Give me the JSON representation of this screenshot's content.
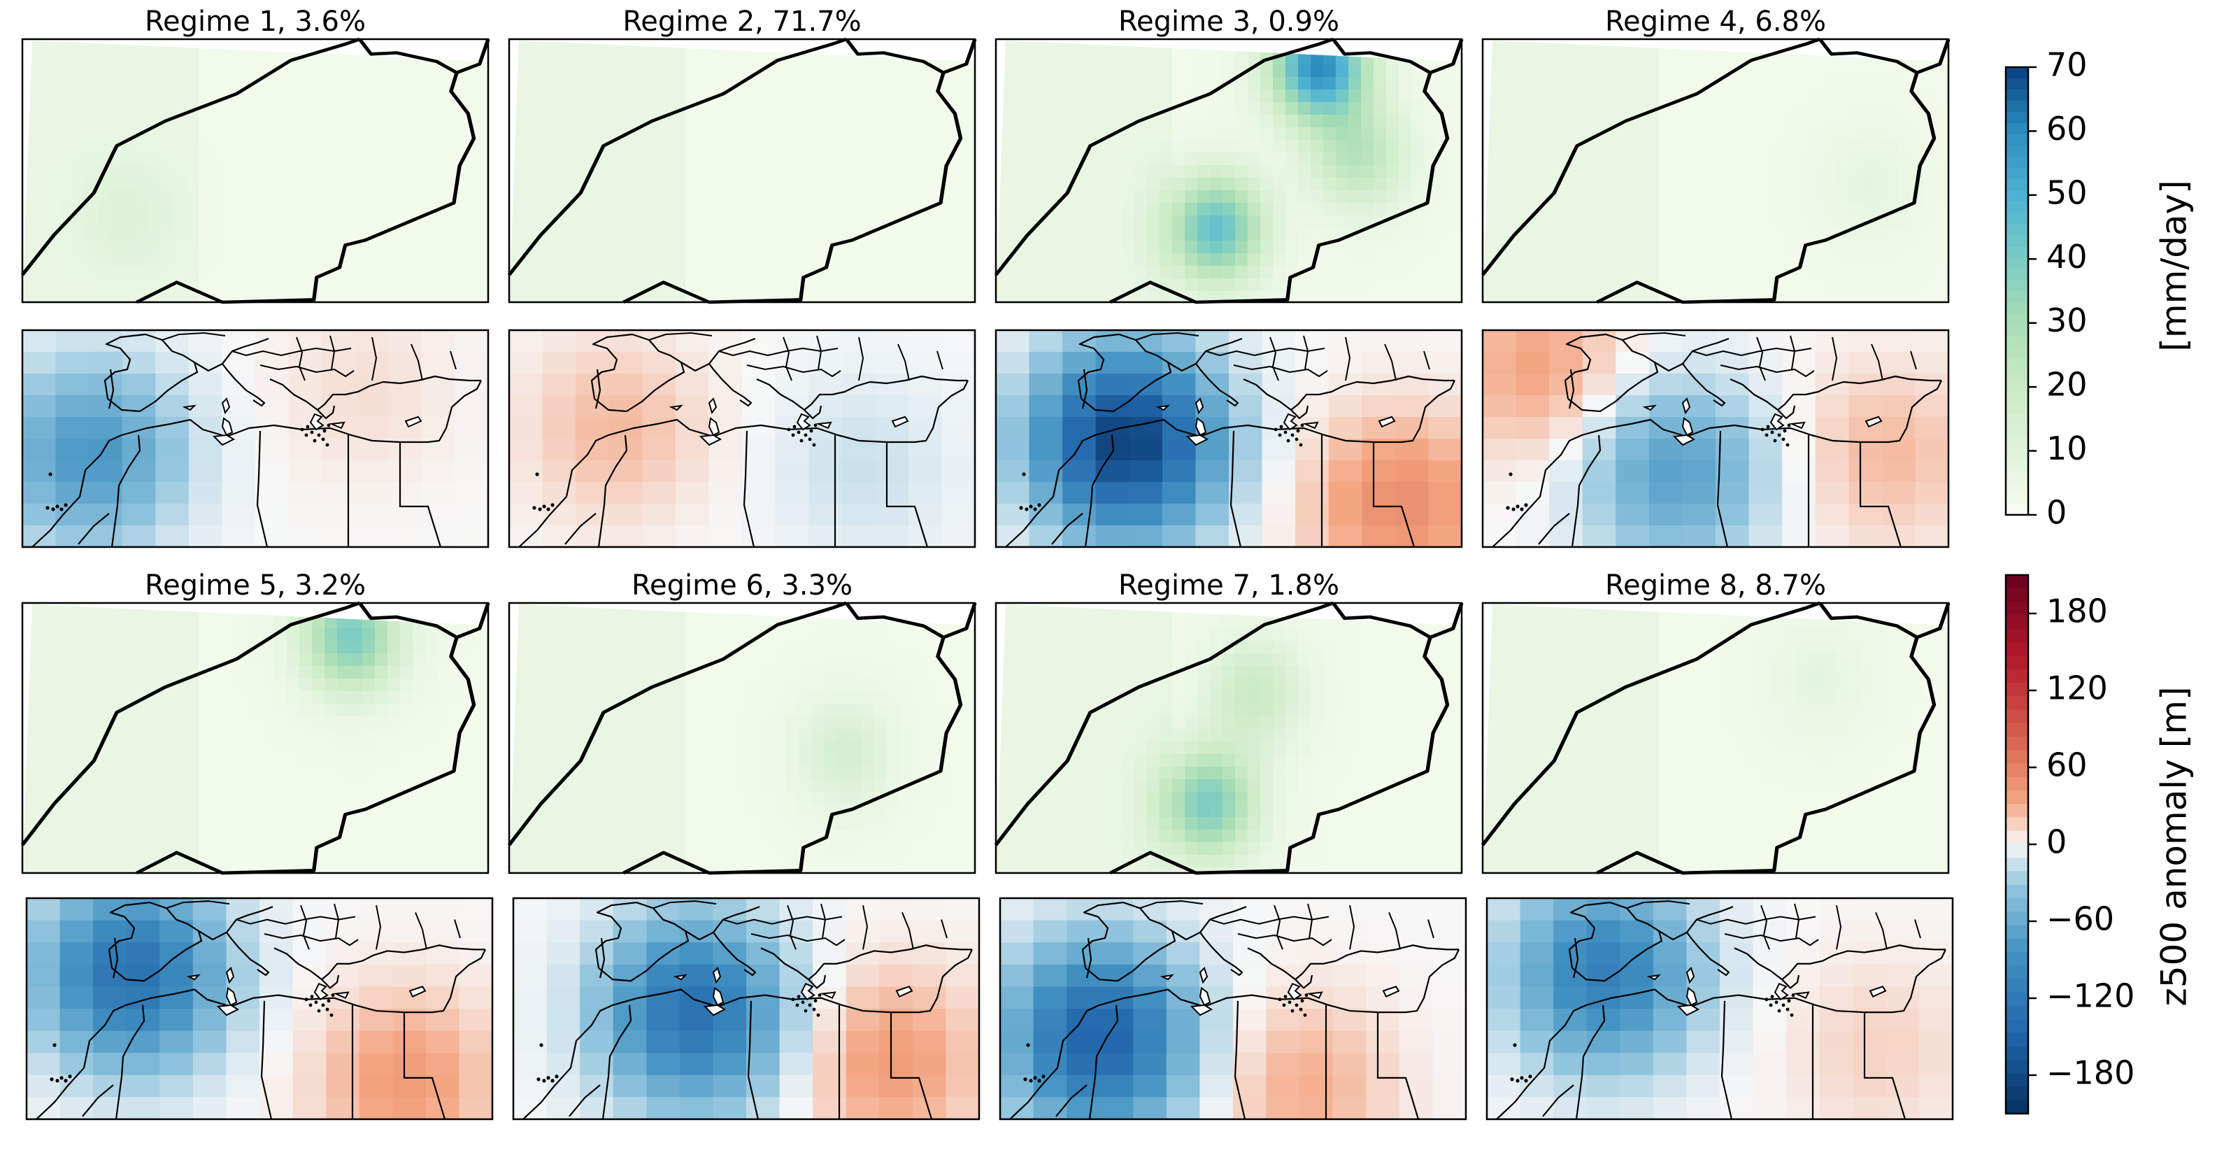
{
  "chart_data": {
    "type": "heatmap",
    "figure_kind": "weather regime composite maps",
    "panels": [
      {
        "id": 1,
        "title": "Regime 1,  3.6%",
        "regime": 1,
        "frequency_pct": 3.6,
        "precip_features": [
          {
            "lon": -14,
            "lat": 30,
            "value": 8
          }
        ],
        "z500_anomaly_features": [
          {
            "lon": -24,
            "lat": 40,
            "value": -80
          },
          {
            "lon": 20,
            "lat": 50,
            "value": 10
          }
        ]
      },
      {
        "id": 2,
        "title": "Regime 2, 71.7%",
        "regime": 2,
        "frequency_pct": 71.7,
        "precip_features": [],
        "z500_anomaly_features": [
          {
            "lon": -18,
            "lat": 44,
            "value": 25
          },
          {
            "lon": 22,
            "lat": 38,
            "value": -15
          }
        ]
      },
      {
        "id": 3,
        "title": "Regime 3,  0.9%",
        "regime": 3,
        "frequency_pct": 0.9,
        "precip_features": [
          {
            "lon": -5.5,
            "lat": 35.1,
            "value": 60
          },
          {
            "lon": -9.5,
            "lat": 29.5,
            "value": 45
          },
          {
            "lon": -4,
            "lat": 32,
            "value": 25
          }
        ],
        "z500_anomaly_features": [
          {
            "lon": -14,
            "lat": 42,
            "value": -190
          },
          {
            "lon": 30,
            "lat": 32,
            "value": 50
          }
        ]
      },
      {
        "id": 4,
        "title": "Regime 4,  6.8%",
        "regime": 4,
        "frequency_pct": 6.8,
        "precip_features": [
          {
            "lon": -3,
            "lat": 31,
            "value": 8
          }
        ],
        "z500_anomaly_features": [
          {
            "lon": -4,
            "lat": 37,
            "value": -70
          },
          {
            "lon": -26,
            "lat": 54,
            "value": 35
          },
          {
            "lon": 30,
            "lat": 40,
            "value": 25
          }
        ]
      },
      {
        "id": 5,
        "title": "Regime 5,  3.2%",
        "regime": 5,
        "frequency_pct": 3.2,
        "precip_features": [
          {
            "lon": -5.3,
            "lat": 34.9,
            "value": 40
          }
        ],
        "z500_anomaly_features": [
          {
            "lon": -18,
            "lat": 48,
            "value": -130
          },
          {
            "lon": 26,
            "lat": 31,
            "value": 40
          }
        ]
      },
      {
        "id": 6,
        "title": "Regime 6,  3.3%",
        "regime": 6,
        "frequency_pct": 3.3,
        "precip_features": [
          {
            "lon": -5,
            "lat": 31,
            "value": 15
          }
        ],
        "z500_anomaly_features": [
          {
            "lon": -6,
            "lat": 42,
            "value": -130
          },
          {
            "lon": 26,
            "lat": 34,
            "value": 40
          }
        ]
      },
      {
        "id": 7,
        "title": "Regime 7,  1.8%",
        "regime": 7,
        "frequency_pct": 1.8,
        "precip_features": [
          {
            "lon": -9.8,
            "lat": 29.3,
            "value": 40
          },
          {
            "lon": -8,
            "lat": 33,
            "value": 20
          }
        ],
        "z500_anomaly_features": [
          {
            "lon": -19,
            "lat": 38,
            "value": -150
          },
          {
            "lon": 14,
            "lat": 30,
            "value": 30
          }
        ]
      },
      {
        "id": 8,
        "title": "Regime 8,  8.7%",
        "regime": 8,
        "frequency_pct": 8.7,
        "precip_features": [
          {
            "lon": -5,
            "lat": 33.5,
            "value": 8
          }
        ],
        "z500_anomaly_features": [
          {
            "lon": -16,
            "lat": 48,
            "value": -110
          },
          {
            "lon": 28,
            "lat": 36,
            "value": 15
          }
        ]
      }
    ],
    "precip_colorbar": {
      "label": "[mm/day]",
      "cmap": "GnBu",
      "range": [
        0,
        70
      ],
      "ticks": [
        "0",
        "10",
        "20",
        "30",
        "40",
        "50",
        "60",
        "70"
      ],
      "tick_values": [
        0,
        10,
        20,
        30,
        40,
        50,
        60,
        70
      ]
    },
    "z500_colorbar": {
      "label": "z500 anomaly [m]",
      "cmap": "RdBu_r",
      "range": [
        -210,
        210
      ],
      "ticks": [
        "180",
        "120",
        "60",
        "0",
        "−60",
        "−120",
        "−180"
      ],
      "tick_values": [
        180,
        120,
        60,
        0,
        -60,
        -120,
        -180
      ]
    }
  }
}
